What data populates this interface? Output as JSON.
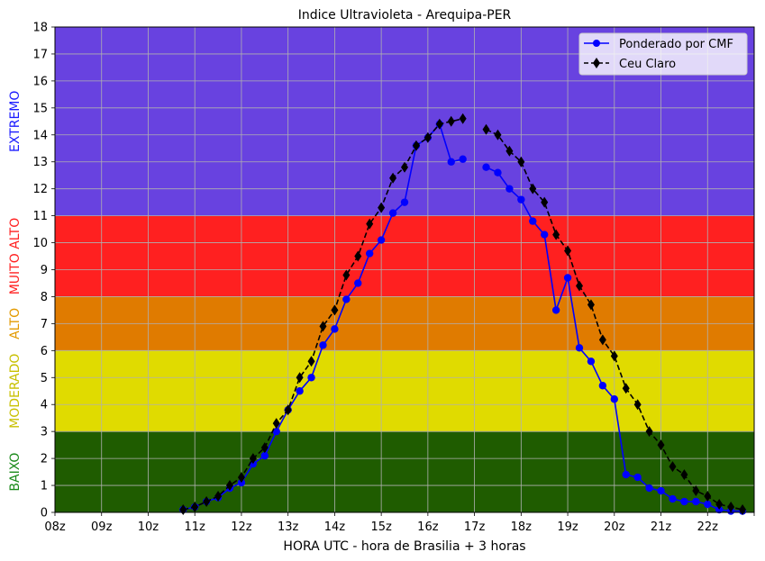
{
  "chart_data": {
    "type": "line",
    "title": "Indice Ultravioleta - Arequipa-PER",
    "xlabel": "HORA UTC - hora de Brasilia + 3 horas",
    "ylabel": "",
    "xlim": [
      8,
      23
    ],
    "ylim": [
      0,
      18
    ],
    "x_tick_values": [
      8,
      9,
      10,
      11,
      12,
      13,
      14,
      15,
      16,
      17,
      18,
      19,
      20,
      21,
      22
    ],
    "x_tick_labels": [
      "08z",
      "09z",
      "10z",
      "11z",
      "12z",
      "13z",
      "14z",
      "15z",
      "16z",
      "17z",
      "18z",
      "19z",
      "20z",
      "21z",
      "22z"
    ],
    "y_ticks": [
      0,
      1,
      2,
      3,
      4,
      5,
      6,
      7,
      8,
      9,
      10,
      11,
      12,
      13,
      14,
      15,
      16,
      17,
      18
    ],
    "grid": true,
    "legend_position": "top-right",
    "bands": [
      {
        "label": "BAIXO",
        "from": 0,
        "to": 3,
        "fill": "#1f5c00",
        "label_color": "#1a8a1a"
      },
      {
        "label": "MODERADO",
        "from": 3,
        "to": 6,
        "fill": "#e0db00",
        "label_color": "#c8c000"
      },
      {
        "label": "ALTO",
        "from": 6,
        "to": 8,
        "fill": "#e07b00",
        "label_color": "#e39a00"
      },
      {
        "label": "MUITO ALTO",
        "from": 8,
        "to": 11,
        "fill": "#ff2020",
        "label_color": "#ff2020"
      },
      {
        "label": "EXTREMO",
        "from": 11,
        "to": 18,
        "fill": "#6842e0",
        "label_color": "#1a1aff"
      }
    ],
    "series": [
      {
        "name": "Ponderado por CMF",
        "color": "#0000ff",
        "style": "solid",
        "marker": "circle",
        "segments": [
          {
            "x": [
              10.75,
              11,
              11.25,
              11.5,
              11.75,
              12,
              12.25,
              12.5,
              12.75,
              13,
              13.25,
              13.5,
              13.75,
              14,
              14.25,
              14.5,
              14.75,
              15,
              15.25,
              15.5,
              15.75,
              16,
              16.25,
              16.5,
              16.75
            ],
            "y": [
              0.1,
              0.2,
              0.4,
              0.55,
              0.9,
              1.1,
              1.8,
              2.1,
              3.0,
              3.8,
              4.5,
              5.0,
              6.2,
              6.8,
              7.9,
              8.5,
              9.6,
              10.1,
              11.1,
              11.5,
              13.6,
              13.9,
              14.4,
              13.0,
              13.1
            ]
          },
          {
            "x": [
              17.25,
              17.5,
              17.75,
              18,
              18.25,
              18.5,
              18.75,
              19,
              19.25,
              19.5,
              19.75,
              20,
              20.25,
              20.5,
              20.75,
              21,
              21.25,
              21.5,
              21.75,
              22,
              22.25,
              22.5,
              22.75
            ],
            "y": [
              12.8,
              12.6,
              12.0,
              11.6,
              10.8,
              10.3,
              7.5,
              8.7,
              6.1,
              5.6,
              4.7,
              4.2,
              1.4,
              1.3,
              0.9,
              0.8,
              0.5,
              0.4,
              0.4,
              0.3,
              0.1,
              0.05,
              0.05
            ]
          }
        ]
      },
      {
        "name": "Ceu Claro",
        "color": "#000000",
        "style": "dashed",
        "marker": "diamond",
        "segments": [
          {
            "x": [
              10.75,
              11,
              11.25,
              11.5,
              11.75,
              12,
              12.25,
              12.5,
              12.75,
              13,
              13.25,
              13.5,
              13.75,
              14,
              14.25,
              14.5,
              14.75,
              15,
              15.25,
              15.5,
              15.75,
              16,
              16.25,
              16.5,
              16.75
            ],
            "y": [
              0.1,
              0.2,
              0.4,
              0.6,
              1.0,
              1.3,
              2.0,
              2.4,
              3.3,
              3.8,
              5.0,
              5.6,
              6.9,
              7.5,
              8.8,
              9.5,
              10.7,
              11.3,
              12.4,
              12.8,
              13.6,
              13.9,
              14.4,
              14.5,
              14.6
            ]
          },
          {
            "x": [
              17.25,
              17.5,
              17.75,
              18,
              18.25,
              18.5,
              18.75,
              19,
              19.25,
              19.5,
              19.75,
              20,
              20.25,
              20.5,
              20.75,
              21,
              21.25,
              21.5,
              21.75,
              22,
              22.25,
              22.5,
              22.75
            ],
            "y": [
              14.2,
              14.0,
              13.4,
              13.0,
              12.0,
              11.5,
              10.3,
              9.7,
              8.4,
              7.7,
              6.4,
              5.8,
              4.6,
              4.0,
              3.0,
              2.5,
              1.7,
              1.4,
              0.8,
              0.6,
              0.3,
              0.2,
              0.1
            ]
          }
        ]
      }
    ]
  }
}
